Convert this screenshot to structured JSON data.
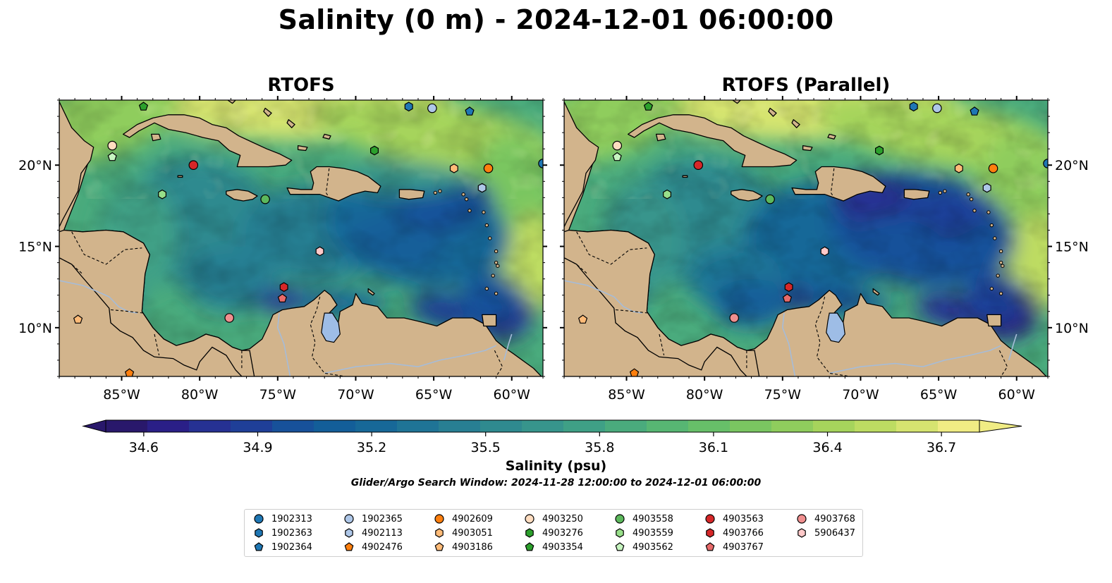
{
  "figure": {
    "title": "Salinity (0 m) - 2024-12-01 06:00:00",
    "search_window": "Glider/Argo Search Window: 2024-11-28 12:00:00 to 2024-12-01 06:00:00"
  },
  "panels": [
    {
      "title": "RTOFS",
      "variant": "standard"
    },
    {
      "title": "RTOFS (Parallel)",
      "variant": "parallel"
    }
  ],
  "axes": {
    "lon_range": [
      -89,
      -58
    ],
    "lat_range": [
      7,
      24
    ],
    "lon_ticks": [
      {
        "value": -85,
        "label": "85°W"
      },
      {
        "value": -80,
        "label": "80°W"
      },
      {
        "value": -75,
        "label": "75°W"
      },
      {
        "value": -70,
        "label": "70°W"
      },
      {
        "value": -65,
        "label": "65°W"
      },
      {
        "value": -60,
        "label": "60°W"
      }
    ],
    "lat_ticks": [
      {
        "value": 20,
        "label": "20°N"
      },
      {
        "value": 15,
        "label": "15°N"
      },
      {
        "value": 10,
        "label": "10°N"
      }
    ]
  },
  "colorbar": {
    "label": "Salinity (psu)",
    "min": 34.5,
    "max": 36.8,
    "tick_labels": [
      "34.6",
      "34.9",
      "35.2",
      "35.5",
      "35.8",
      "36.1",
      "36.4",
      "36.7"
    ],
    "tick_values": [
      34.6,
      34.9,
      35.2,
      35.5,
      35.8,
      36.1,
      36.4,
      36.7
    ],
    "colors": [
      "#29186b",
      "#2a1f87",
      "#263193",
      "#1f3f98",
      "#17519a",
      "#135e99",
      "#176898",
      "#1f7496",
      "#287f93",
      "#2f8a8f",
      "#37958c",
      "#3fa086",
      "#4aab7d",
      "#57b673",
      "#67bf69",
      "#7ac661",
      "#8fcd5d",
      "#a6d45c",
      "#bddc62",
      "#d6e470",
      "#f0ec84"
    ],
    "land_color": "#d2b48c",
    "lake_color": "#9ebde6",
    "ocean_pacific_color": "#29186b"
  },
  "legend": {
    "columns": [
      [
        {
          "label": "1902313",
          "marker": "circle",
          "color": "#1f77b4"
        },
        {
          "label": "1902363",
          "marker": "hexagon",
          "color": "#1f77b4"
        },
        {
          "label": "1902364",
          "marker": "pentagon",
          "color": "#1f77b4"
        }
      ],
      [
        {
          "label": "1902365",
          "marker": "circle",
          "color": "#aec7e8"
        },
        {
          "label": "4902113",
          "marker": "hexagon",
          "color": "#aec7e8"
        },
        {
          "label": "4902476",
          "marker": "pentagon",
          "color": "#ff7f0e"
        }
      ],
      [
        {
          "label": "4902609",
          "marker": "circle",
          "color": "#ff7f0e"
        },
        {
          "label": "4903051",
          "marker": "hexagon",
          "color": "#ffbb78"
        },
        {
          "label": "4903186",
          "marker": "pentagon",
          "color": "#ffbb78"
        }
      ],
      [
        {
          "label": "4903250",
          "marker": "circle",
          "color": "#ffddc0"
        },
        {
          "label": "4903276",
          "marker": "hexagon",
          "color": "#2ca02c"
        },
        {
          "label": "4903354",
          "marker": "pentagon",
          "color": "#2ca02c"
        }
      ],
      [
        {
          "label": "4903558",
          "marker": "circle",
          "color": "#5cb85c"
        },
        {
          "label": "4903559",
          "marker": "hexagon",
          "color": "#98df8a"
        },
        {
          "label": "4903562",
          "marker": "pentagon",
          "color": "#c7f5c0"
        }
      ],
      [
        {
          "label": "4903563",
          "marker": "circle",
          "color": "#d62728"
        },
        {
          "label": "4903766",
          "marker": "hexagon",
          "color": "#d62728"
        },
        {
          "label": "4903767",
          "marker": "pentagon",
          "color": "#e86a6a"
        }
      ],
      [
        {
          "label": "4903768",
          "marker": "circle",
          "color": "#f08f8f"
        },
        {
          "label": "5906437",
          "marker": "hexagon",
          "color": "#ffc9c9"
        }
      ]
    ]
  },
  "floats": [
    {
      "id": "1902313",
      "lon": -58.0,
      "lat": 20.1
    },
    {
      "id": "1902363",
      "lon": -66.6,
      "lat": 23.6
    },
    {
      "id": "1902364",
      "lon": -62.7,
      "lat": 23.3
    },
    {
      "id": "1902365",
      "lon": -65.1,
      "lat": 23.5
    },
    {
      "id": "4902113",
      "lon": -61.9,
      "lat": 18.6
    },
    {
      "id": "4902476",
      "lon": -84.5,
      "lat": 7.2
    },
    {
      "id": "4902609",
      "lon": -61.5,
      "lat": 19.8
    },
    {
      "id": "4903051",
      "lon": -63.7,
      "lat": 19.8
    },
    {
      "id": "4903186",
      "lon": -87.8,
      "lat": 10.5
    },
    {
      "id": "4903250",
      "lon": -85.6,
      "lat": 21.2
    },
    {
      "id": "4903276",
      "lon": -68.8,
      "lat": 20.9
    },
    {
      "id": "4903354",
      "lon": -83.6,
      "lat": 23.6
    },
    {
      "id": "4903558",
      "lon": -75.8,
      "lat": 17.9
    },
    {
      "id": "4903559",
      "lon": -82.4,
      "lat": 18.2
    },
    {
      "id": "4903562",
      "lon": -85.6,
      "lat": 20.5
    },
    {
      "id": "4903563",
      "lon": -80.4,
      "lat": 20.0
    },
    {
      "id": "4903766",
      "lon": -74.6,
      "lat": 12.5
    },
    {
      "id": "4903767",
      "lon": -74.7,
      "lat": 11.8
    },
    {
      "id": "4903768",
      "lon": -78.1,
      "lat": 10.6
    },
    {
      "id": "5906437",
      "lon": -72.3,
      "lat": 14.7
    }
  ]
}
